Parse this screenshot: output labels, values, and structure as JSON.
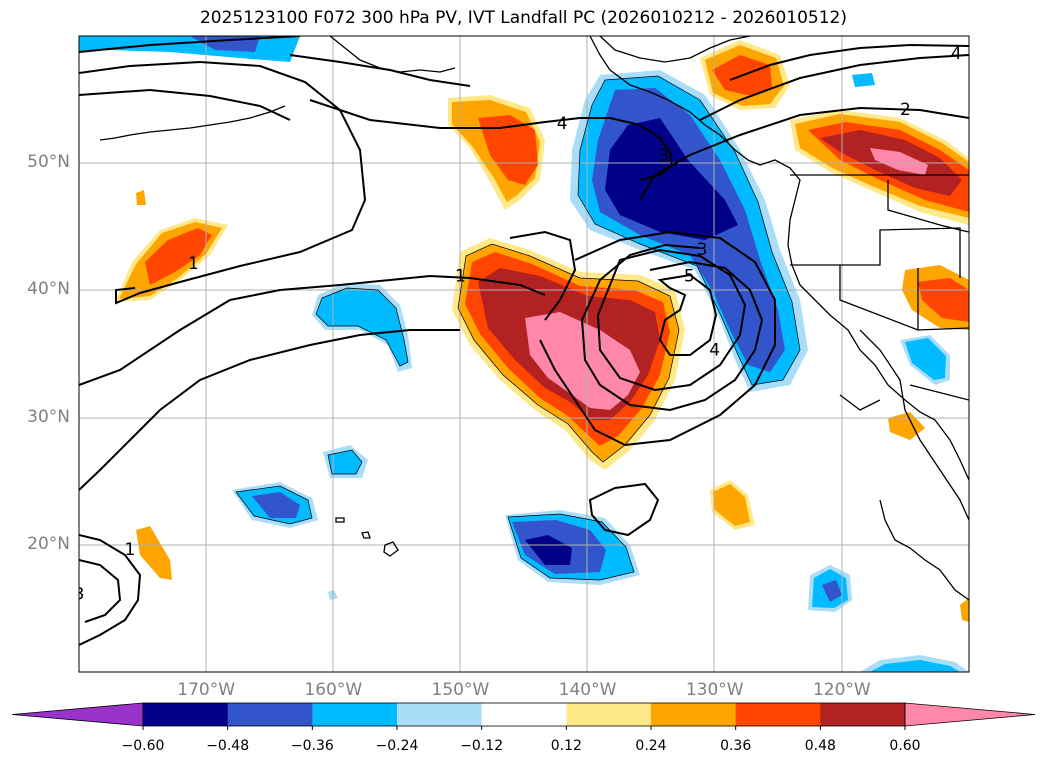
{
  "title": "2025123100 F072 300 hPa PV, IVT Landfall PC (2026010212 - 2026010512)",
  "map": {
    "projection": "PlateCarree",
    "lon_range": [
      -180,
      -110
    ],
    "lat_range": [
      10,
      60
    ],
    "lat_ticks": [
      {
        "lat": 20,
        "label": "20°N"
      },
      {
        "lat": 30,
        "label": "30°N"
      },
      {
        "lat": 40,
        "label": "40°N"
      },
      {
        "lat": 50,
        "label": "50°N"
      }
    ],
    "lon_ticks": [
      {
        "lon": -170,
        "label": "170°W"
      },
      {
        "lon": -160,
        "label": "160°W"
      },
      {
        "lon": -150,
        "label": "150°W"
      },
      {
        "lon": -140,
        "label": "140°W"
      },
      {
        "lon": -130,
        "label": "130°W"
      },
      {
        "lon": -120,
        "label": "120°W"
      }
    ],
    "gridlines": true
  },
  "contour_labels": [
    {
      "text": "4",
      "lon": -142,
      "lat": 53
    },
    {
      "text": "3",
      "lon": -134,
      "lat": 50.5
    },
    {
      "text": "2",
      "lon": -115,
      "lat": 54.1
    },
    {
      "text": "4",
      "lon": -111,
      "lat": 58.5
    },
    {
      "text": "1",
      "lon": -171,
      "lat": 42
    },
    {
      "text": "1",
      "lon": -150,
      "lat": 41
    },
    {
      "text": "3",
      "lon": -131,
      "lat": 43.1
    },
    {
      "text": "5",
      "lon": -132,
      "lat": 41
    },
    {
      "text": "4",
      "lon": -130,
      "lat": 35.2
    },
    {
      "text": "1",
      "lon": -176,
      "lat": 19.5
    },
    {
      "text": "3",
      "lon": -180,
      "lat": 16
    }
  ],
  "colorbar": {
    "levels": [
      -0.6,
      -0.48,
      -0.36,
      -0.24,
      -0.12,
      0.12,
      0.24,
      0.36,
      0.48,
      0.6
    ],
    "tick_labels": [
      "−0.60",
      "−0.48",
      "−0.36",
      "−0.24",
      "−0.12",
      "0.12",
      "0.24",
      "0.36",
      "0.48",
      "0.60"
    ],
    "colors": [
      "#9933cc",
      "#000088",
      "#3355cc",
      "#00bbff",
      "#aaddf8",
      "#ffffff",
      "#ffe888",
      "#ffa500",
      "#ff4500",
      "#b22222",
      "#ff88aa"
    ],
    "extend": "both"
  }
}
